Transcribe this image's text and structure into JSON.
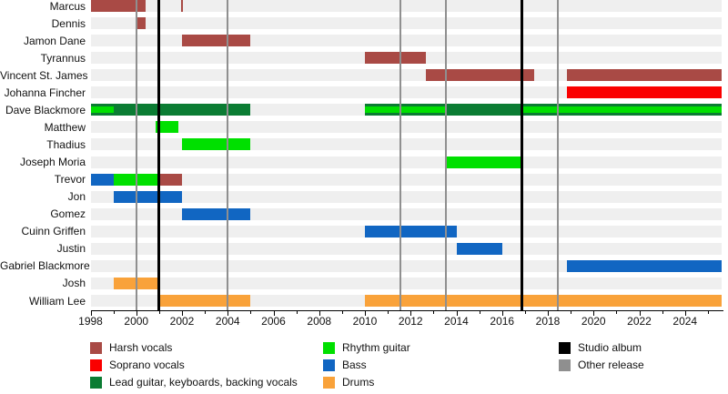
{
  "chart_data": {
    "type": "timeline",
    "description": "Band members timeline (Gantt-style) with instrument roles and release markers",
    "x_axis": {
      "min": 1998,
      "max": 2025.6,
      "labeled_ticks": [
        1998,
        2000,
        2002,
        2004,
        2006,
        2008,
        2010,
        2012,
        2014,
        2016,
        2018,
        2020,
        2022,
        2024
      ],
      "minor_tick_every": 1,
      "grid": "vertical release lines only"
    },
    "colors": {
      "harsh": "#a94a45",
      "soprano": "#fa0000",
      "lead": "#0b7c33",
      "rhythm": "#00e000",
      "bass": "#1166c2",
      "drums": "#f9a23a",
      "album": "#000000",
      "other": "#8f8f8f",
      "row_band": "#efefef"
    },
    "rows": [
      {
        "name": "Marcus",
        "segments": [
          {
            "role": "harsh",
            "start": 1998.0,
            "end": 2000.4
          },
          {
            "role": "harsh",
            "start": 2001.95,
            "end": 2002.05
          }
        ]
      },
      {
        "name": "Dennis",
        "segments": [
          {
            "role": "harsh",
            "start": 2000.0,
            "end": 2000.4
          }
        ]
      },
      {
        "name": "Jamon Dane",
        "segments": [
          {
            "role": "harsh",
            "start": 2002.0,
            "end": 2005.0
          }
        ]
      },
      {
        "name": "Tyrannus",
        "segments": [
          {
            "role": "harsh",
            "start": 2010.0,
            "end": 2012.65
          }
        ]
      },
      {
        "name": "Vincent St. James",
        "segments": [
          {
            "role": "harsh",
            "start": 2012.65,
            "end": 2017.4
          },
          {
            "role": "harsh",
            "start": 2018.85,
            "end": 2025.6
          }
        ]
      },
      {
        "name": "Johanna Fincher",
        "segments": [
          {
            "role": "soprano",
            "start": 2018.85,
            "end": 2025.6
          }
        ]
      },
      {
        "name": "Dave Blackmore",
        "segments": [
          {
            "role": "lead",
            "start": 1998.0,
            "end": 2005.0
          },
          {
            "role": "lead",
            "start": 2010.0,
            "end": 2025.6
          },
          {
            "role": "rhythm",
            "start": 1998.0,
            "end": 1999.0,
            "overlay": true
          },
          {
            "role": "rhythm",
            "start": 2010.0,
            "end": 2013.55,
            "overlay": true
          },
          {
            "role": "rhythm",
            "start": 2016.85,
            "end": 2025.6,
            "overlay": true
          }
        ]
      },
      {
        "name": "Matthew",
        "segments": [
          {
            "role": "rhythm",
            "start": 2000.85,
            "end": 2001.85
          }
        ]
      },
      {
        "name": "Thadius",
        "segments": [
          {
            "role": "rhythm",
            "start": 2002.0,
            "end": 2005.0
          }
        ]
      },
      {
        "name": "Joseph Moria",
        "segments": [
          {
            "role": "rhythm",
            "start": 2013.55,
            "end": 2016.85
          }
        ]
      },
      {
        "name": "Trevor",
        "segments": [
          {
            "role": "bass",
            "start": 1998.0,
            "end": 1999.0
          },
          {
            "role": "rhythm",
            "start": 1999.0,
            "end": 2001.0
          },
          {
            "role": "harsh",
            "start": 2001.0,
            "end": 2002.0
          }
        ]
      },
      {
        "name": "Jon",
        "segments": [
          {
            "role": "bass",
            "start": 1999.0,
            "end": 2002.0
          }
        ]
      },
      {
        "name": "Gomez",
        "segments": [
          {
            "role": "bass",
            "start": 2002.0,
            "end": 2005.0
          }
        ]
      },
      {
        "name": "Cuinn Griffen",
        "segments": [
          {
            "role": "bass",
            "start": 2010.0,
            "end": 2014.0
          }
        ]
      },
      {
        "name": "Justin",
        "segments": [
          {
            "role": "bass",
            "start": 2014.0,
            "end": 2016.0
          }
        ]
      },
      {
        "name": "Gabriel Blackmore",
        "segments": [
          {
            "role": "bass",
            "start": 2018.85,
            "end": 2025.6
          }
        ]
      },
      {
        "name": "Josh",
        "segments": [
          {
            "role": "drums",
            "start": 1999.0,
            "end": 2001.0
          }
        ]
      },
      {
        "name": "William Lee",
        "segments": [
          {
            "role": "drums",
            "start": 2001.0,
            "end": 2005.0
          },
          {
            "role": "drums",
            "start": 2010.0,
            "end": 2025.6
          }
        ]
      }
    ],
    "events": [
      {
        "type": "other_release",
        "year": 2000.0
      },
      {
        "type": "studio_album",
        "year": 2001.0
      },
      {
        "type": "other_release",
        "year": 2004.0
      },
      {
        "type": "other_release",
        "year": 2011.55
      },
      {
        "type": "other_release",
        "year": 2013.55
      },
      {
        "type": "studio_album",
        "year": 2016.85
      },
      {
        "type": "other_release",
        "year": 2018.45
      }
    ],
    "legend": {
      "columns": [
        {
          "items": [
            {
              "label": "Harsh vocals",
              "color_key": "harsh"
            },
            {
              "label": "Soprano vocals",
              "color_key": "soprano"
            },
            {
              "label": "Lead guitar, keyboards, backing vocals",
              "color_key": "lead"
            }
          ]
        },
        {
          "items": [
            {
              "label": "Rhythm guitar",
              "color_key": "rhythm"
            },
            {
              "label": "Bass",
              "color_key": "bass"
            },
            {
              "label": "Drums",
              "color_key": "drums"
            }
          ]
        },
        {
          "items": [
            {
              "label": "Studio album",
              "color_key": "album"
            },
            {
              "label": "Other release",
              "color_key": "other"
            }
          ]
        }
      ]
    }
  }
}
